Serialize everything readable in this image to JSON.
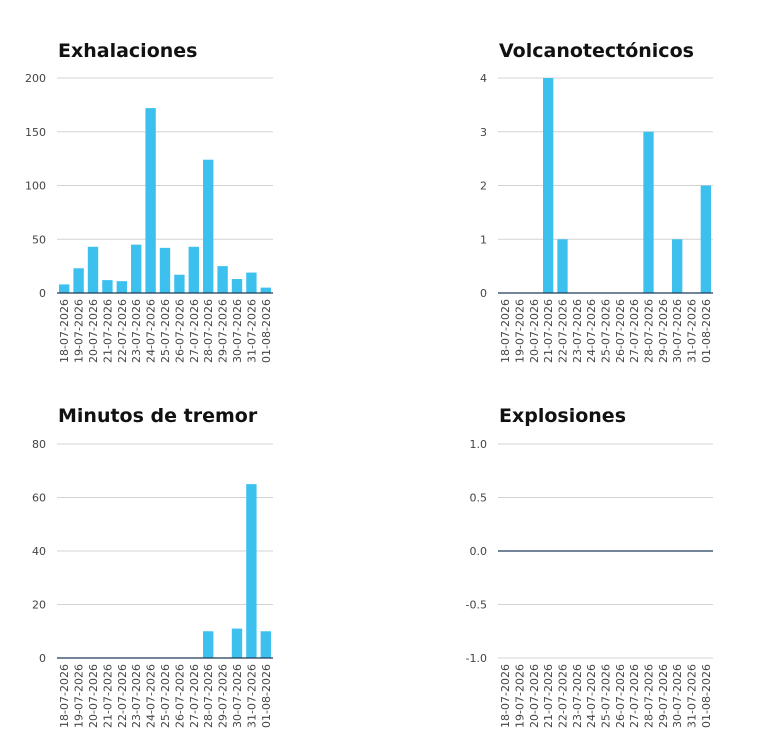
{
  "colors": {
    "bar": "#3CC1EE",
    "grid": "#D3D3D3",
    "baseline": "#1F3A5A",
    "tick_text": "#444444",
    "title_text": "#111111"
  },
  "chart_data": [
    {
      "type": "bar",
      "title": "Exhalaciones",
      "categories": [
        "18-07-2026",
        "19-07-2026",
        "20-07-2026",
        "21-07-2026",
        "22-07-2026",
        "23-07-2026",
        "24-07-2026",
        "25-07-2026",
        "26-07-2026",
        "27-07-2026",
        "28-07-2026",
        "29-07-2026",
        "30-07-2026",
        "31-07-2026",
        "01-08-2026"
      ],
      "values": [
        8,
        23,
        43,
        12,
        11,
        45,
        172,
        42,
        17,
        43,
        124,
        25,
        13,
        19,
        5
      ],
      "ylim": [
        0,
        200
      ],
      "yticks": [
        0,
        50,
        100,
        150,
        200
      ],
      "ytick_labels": [
        "0",
        "50",
        "100",
        "150",
        "200"
      ],
      "grid": true,
      "xlabel": "",
      "ylabel": ""
    },
    {
      "type": "bar",
      "title": "Volcanotectónicos",
      "categories": [
        "18-07-2026",
        "19-07-2026",
        "20-07-2026",
        "21-07-2026",
        "22-07-2026",
        "23-07-2026",
        "24-07-2026",
        "25-07-2026",
        "26-07-2026",
        "27-07-2026",
        "28-07-2026",
        "29-07-2026",
        "30-07-2026",
        "31-07-2026",
        "01-08-2026"
      ],
      "values": [
        0,
        0,
        0,
        4,
        1,
        0,
        0,
        0,
        0,
        0,
        3,
        0,
        1,
        0,
        2
      ],
      "ylim": [
        0,
        4
      ],
      "yticks": [
        0,
        1,
        2,
        3,
        4
      ],
      "ytick_labels": [
        "0",
        "1",
        "2",
        "3",
        "4"
      ],
      "grid": true,
      "xlabel": "",
      "ylabel": ""
    },
    {
      "type": "bar",
      "title": "Minutos de tremor",
      "categories": [
        "18-07-2026",
        "19-07-2026",
        "20-07-2026",
        "21-07-2026",
        "22-07-2026",
        "23-07-2026",
        "24-07-2026",
        "25-07-2026",
        "26-07-2026",
        "27-07-2026",
        "28-07-2026",
        "29-07-2026",
        "30-07-2026",
        "31-07-2026",
        "01-08-2026"
      ],
      "values": [
        0,
        0,
        0,
        0,
        0,
        0,
        0,
        0,
        0,
        0,
        10,
        0,
        11,
        65,
        10
      ],
      "ylim": [
        0,
        80
      ],
      "yticks": [
        0,
        20,
        40,
        60,
        80
      ],
      "ytick_labels": [
        "0",
        "20",
        "40",
        "60",
        "80"
      ],
      "grid": true,
      "xlabel": "",
      "ylabel": ""
    },
    {
      "type": "bar",
      "title": "Explosiones",
      "categories": [
        "18-07-2026",
        "19-07-2026",
        "20-07-2026",
        "21-07-2026",
        "22-07-2026",
        "23-07-2026",
        "24-07-2026",
        "25-07-2026",
        "26-07-2026",
        "27-07-2026",
        "28-07-2026",
        "29-07-2026",
        "30-07-2026",
        "31-07-2026",
        "01-08-2026"
      ],
      "values": [
        0,
        0,
        0,
        0,
        0,
        0,
        0,
        0,
        0,
        0,
        0,
        0,
        0,
        0,
        0
      ],
      "ylim": [
        -1,
        1
      ],
      "yticks": [
        -1,
        -0.5,
        0,
        0.5,
        1
      ],
      "ytick_labels": [
        "-1.0",
        "-0.5",
        "0.0",
        "0.5",
        "1.0"
      ],
      "grid": true,
      "xlabel": "",
      "ylabel": ""
    }
  ]
}
